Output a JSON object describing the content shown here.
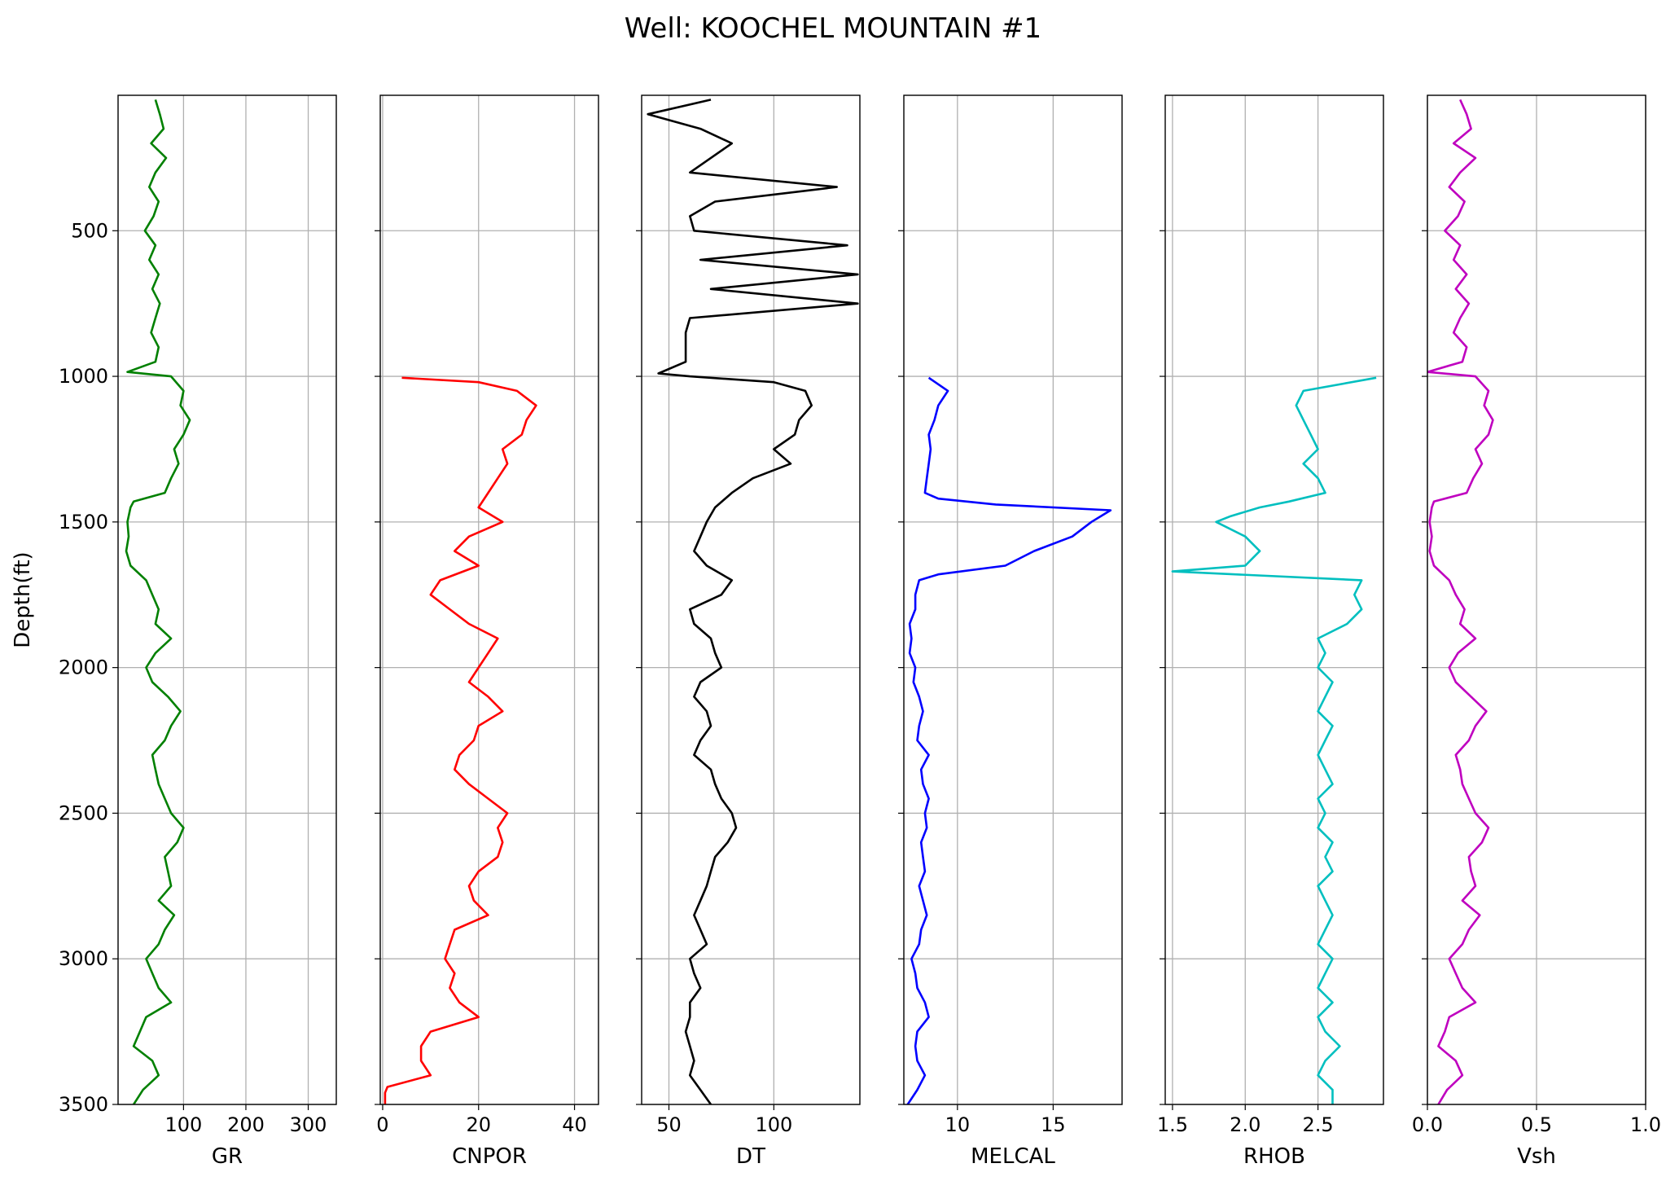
{
  "figure": {
    "title": "Well: KOOCHEL MOUNTAIN #1"
  },
  "chart_data": {
    "type": "line",
    "title": "Well: KOOCHEL MOUNTAIN #1",
    "orientation": "vertical-depth",
    "ylabel": "Depth(ft)",
    "ylim": [
      3500,
      35
    ],
    "yticks": [
      500,
      1000,
      1500,
      2000,
      2500,
      3000,
      3500
    ],
    "grid": true,
    "tracks": [
      {
        "name": "GR",
        "xlabel": "GR",
        "color": "#008000",
        "xlim": [
          -5,
          345
        ],
        "xticks": [
          100,
          200,
          300
        ],
        "xtick_labels": [
          "100",
          "200",
          "300"
        ],
        "depth": [
          50,
          100,
          150,
          200,
          250,
          300,
          350,
          400,
          450,
          500,
          550,
          600,
          650,
          700,
          750,
          800,
          850,
          900,
          950,
          985,
          1000,
          1050,
          1100,
          1150,
          1200,
          1250,
          1300,
          1350,
          1400,
          1430,
          1450,
          1500,
          1550,
          1600,
          1650,
          1700,
          1750,
          1800,
          1850,
          1900,
          1950,
          2000,
          2050,
          2100,
          2150,
          2200,
          2250,
          2300,
          2350,
          2400,
          2450,
          2500,
          2550,
          2600,
          2650,
          2700,
          2750,
          2800,
          2850,
          2900,
          2950,
          3000,
          3050,
          3100,
          3150,
          3200,
          3250,
          3300,
          3350,
          3400,
          3450,
          3500
        ],
        "values": [
          55,
          62,
          68,
          48,
          72,
          55,
          45,
          60,
          52,
          38,
          55,
          45,
          60,
          50,
          62,
          55,
          48,
          60,
          55,
          10,
          80,
          100,
          95,
          110,
          100,
          85,
          92,
          80,
          70,
          20,
          15,
          10,
          12,
          8,
          15,
          40,
          50,
          60,
          55,
          80,
          55,
          40,
          50,
          75,
          95,
          80,
          70,
          50,
          55,
          60,
          70,
          80,
          100,
          90,
          70,
          75,
          80,
          60,
          85,
          70,
          60,
          40,
          50,
          60,
          80,
          40,
          30,
          20,
          50,
          60,
          35,
          20
        ]
      },
      {
        "name": "CNPOR",
        "xlabel": "CNPOR",
        "color": "#ff0000",
        "xlim": [
          -0.5,
          45
        ],
        "xticks": [
          0,
          20,
          40
        ],
        "xtick_labels": [
          "0",
          "20",
          "40"
        ],
        "depth": [
          1005,
          1020,
          1050,
          1100,
          1150,
          1200,
          1250,
          1300,
          1350,
          1400,
          1450,
          1500,
          1550,
          1600,
          1650,
          1700,
          1750,
          1800,
          1850,
          1900,
          1950,
          2000,
          2050,
          2100,
          2150,
          2200,
          2250,
          2300,
          2350,
          2400,
          2450,
          2500,
          2550,
          2600,
          2650,
          2700,
          2750,
          2800,
          2850,
          2900,
          2950,
          3000,
          3050,
          3100,
          3150,
          3200,
          3250,
          3300,
          3350,
          3400,
          3440,
          3460,
          3500
        ],
        "values": [
          4,
          20,
          28,
          32,
          30,
          29,
          25,
          26,
          24,
          22,
          20,
          25,
          18,
          15,
          20,
          12,
          10,
          14,
          18,
          24,
          22,
          20,
          18,
          22,
          25,
          20,
          19,
          16,
          15,
          18,
          22,
          26,
          24,
          25,
          24,
          20,
          18,
          19,
          22,
          15,
          14,
          13,
          15,
          14,
          16,
          20,
          10,
          8,
          8,
          10,
          1,
          0.5,
          0.5
        ]
      },
      {
        "name": "DT",
        "xlabel": "DT",
        "color": "#000000",
        "xlim": [
          37,
          141
        ],
        "xticks": [
          50,
          100
        ],
        "xtick_labels": [
          "50",
          "100"
        ],
        "depth": [
          50,
          100,
          150,
          200,
          250,
          300,
          350,
          400,
          450,
          500,
          550,
          600,
          650,
          700,
          750,
          800,
          850,
          900,
          950,
          990,
          1000,
          1020,
          1050,
          1100,
          1150,
          1200,
          1250,
          1300,
          1350,
          1400,
          1450,
          1500,
          1550,
          1600,
          1650,
          1700,
          1750,
          1800,
          1850,
          1900,
          1950,
          2000,
          2050,
          2100,
          2150,
          2200,
          2250,
          2300,
          2350,
          2400,
          2450,
          2500,
          2550,
          2600,
          2650,
          2700,
          2750,
          2800,
          2850,
          2900,
          2950,
          3000,
          3050,
          3100,
          3150,
          3200,
          3250,
          3300,
          3350,
          3400,
          3450,
          3500
        ],
        "values": [
          70,
          40,
          65,
          80,
          70,
          60,
          130,
          72,
          60,
          62,
          135,
          65,
          140,
          70,
          140,
          60,
          58,
          58,
          58,
          45,
          60,
          100,
          115,
          118,
          112,
          110,
          100,
          108,
          90,
          80,
          72,
          68,
          65,
          62,
          68,
          80,
          75,
          60,
          62,
          70,
          72,
          75,
          65,
          62,
          68,
          70,
          65,
          62,
          70,
          72,
          75,
          80,
          82,
          78,
          72,
          70,
          68,
          65,
          62,
          65,
          68,
          60,
          62,
          65,
          60,
          60,
          58,
          60,
          62,
          60,
          65,
          70
        ]
      },
      {
        "name": "MELCAL",
        "xlabel": "MELCAL",
        "color": "#0000ff",
        "xlim": [
          7.2,
          18.6
        ],
        "xticks": [
          10,
          15
        ],
        "xtick_labels": [
          "10",
          "15"
        ],
        "depth": [
          1005,
          1050,
          1100,
          1150,
          1200,
          1250,
          1300,
          1350,
          1400,
          1420,
          1440,
          1460,
          1500,
          1550,
          1600,
          1650,
          1680,
          1700,
          1750,
          1800,
          1850,
          1900,
          1950,
          2000,
          2050,
          2100,
          2150,
          2200,
          2250,
          2300,
          2350,
          2400,
          2450,
          2500,
          2550,
          2600,
          2650,
          2700,
          2750,
          2800,
          2850,
          2900,
          2950,
          3000,
          3050,
          3100,
          3150,
          3200,
          3250,
          3300,
          3350,
          3400,
          3450,
          3500
        ],
        "values": [
          8.5,
          9.5,
          9.0,
          8.8,
          8.5,
          8.6,
          8.5,
          8.4,
          8.3,
          9.0,
          12.0,
          18.0,
          17.0,
          16.0,
          14.0,
          12.5,
          9.0,
          8.0,
          7.8,
          7.8,
          7.5,
          7.6,
          7.5,
          7.8,
          7.7,
          8.0,
          8.2,
          8.0,
          7.9,
          8.5,
          8.1,
          8.2,
          8.5,
          8.3,
          8.4,
          8.1,
          8.2,
          8.3,
          8.0,
          8.2,
          8.4,
          8.1,
          8.0,
          7.6,
          7.8,
          7.9,
          8.3,
          8.5,
          7.9,
          7.8,
          7.9,
          8.3,
          7.9,
          7.4
        ]
      },
      {
        "name": "RHOB",
        "xlabel": "RHOB",
        "color": "#00bfbf",
        "xlim": [
          1.45,
          2.95
        ],
        "xticks": [
          1.5,
          2.0,
          2.5
        ],
        "xtick_labels": [
          "1.5",
          "2.0",
          "2.5"
        ],
        "depth": [
          1005,
          1050,
          1100,
          1150,
          1200,
          1250,
          1300,
          1350,
          1400,
          1430,
          1450,
          1480,
          1500,
          1550,
          1600,
          1650,
          1670,
          1700,
          1750,
          1800,
          1850,
          1900,
          1950,
          2000,
          2050,
          2100,
          2150,
          2200,
          2250,
          2300,
          2350,
          2400,
          2450,
          2500,
          2550,
          2600,
          2650,
          2700,
          2750,
          2800,
          2850,
          2900,
          2950,
          3000,
          3050,
          3100,
          3150,
          3200,
          3250,
          3300,
          3350,
          3400,
          3450,
          3500
        ],
        "values": [
          2.9,
          2.4,
          2.35,
          2.4,
          2.45,
          2.5,
          2.4,
          2.5,
          2.55,
          2.3,
          2.1,
          1.9,
          1.8,
          2.0,
          2.1,
          2.0,
          1.5,
          2.8,
          2.75,
          2.8,
          2.7,
          2.5,
          2.55,
          2.5,
          2.6,
          2.55,
          2.5,
          2.6,
          2.55,
          2.5,
          2.55,
          2.6,
          2.5,
          2.55,
          2.5,
          2.6,
          2.55,
          2.6,
          2.5,
          2.55,
          2.6,
          2.55,
          2.5,
          2.6,
          2.55,
          2.5,
          2.6,
          2.5,
          2.55,
          2.65,
          2.55,
          2.5,
          2.6,
          2.6
        ]
      },
      {
        "name": "Vsh",
        "xlabel": "Vsh",
        "color": "#bf00bf",
        "xlim": [
          0.0,
          1.0
        ],
        "xticks": [
          0.0,
          0.5,
          1.0
        ],
        "xtick_labels": [
          "0.0",
          "0.5",
          "1.0"
        ],
        "depth": [
          50,
          100,
          150,
          200,
          250,
          300,
          350,
          400,
          450,
          500,
          550,
          600,
          650,
          700,
          750,
          800,
          850,
          900,
          950,
          985,
          1000,
          1050,
          1100,
          1150,
          1200,
          1250,
          1300,
          1350,
          1400,
          1430,
          1450,
          1500,
          1550,
          1600,
          1650,
          1700,
          1750,
          1800,
          1850,
          1900,
          1950,
          2000,
          2050,
          2100,
          2150,
          2200,
          2250,
          2300,
          2350,
          2400,
          2450,
          2500,
          2550,
          2600,
          2650,
          2700,
          2750,
          2800,
          2850,
          2900,
          2950,
          3000,
          3050,
          3100,
          3150,
          3200,
          3250,
          3300,
          3350,
          3400,
          3450,
          3500
        ],
        "values": [
          0.15,
          0.18,
          0.2,
          0.12,
          0.22,
          0.15,
          0.1,
          0.17,
          0.14,
          0.08,
          0.15,
          0.12,
          0.18,
          0.13,
          0.19,
          0.15,
          0.12,
          0.18,
          0.16,
          0.0,
          0.22,
          0.28,
          0.26,
          0.3,
          0.28,
          0.22,
          0.25,
          0.21,
          0.18,
          0.03,
          0.02,
          0.01,
          0.02,
          0.01,
          0.03,
          0.1,
          0.13,
          0.17,
          0.15,
          0.22,
          0.14,
          0.1,
          0.13,
          0.2,
          0.27,
          0.22,
          0.19,
          0.13,
          0.15,
          0.16,
          0.19,
          0.22,
          0.28,
          0.25,
          0.19,
          0.2,
          0.22,
          0.16,
          0.24,
          0.19,
          0.16,
          0.1,
          0.13,
          0.16,
          0.22,
          0.1,
          0.08,
          0.05,
          0.13,
          0.16,
          0.09,
          0.05
        ]
      }
    ]
  }
}
